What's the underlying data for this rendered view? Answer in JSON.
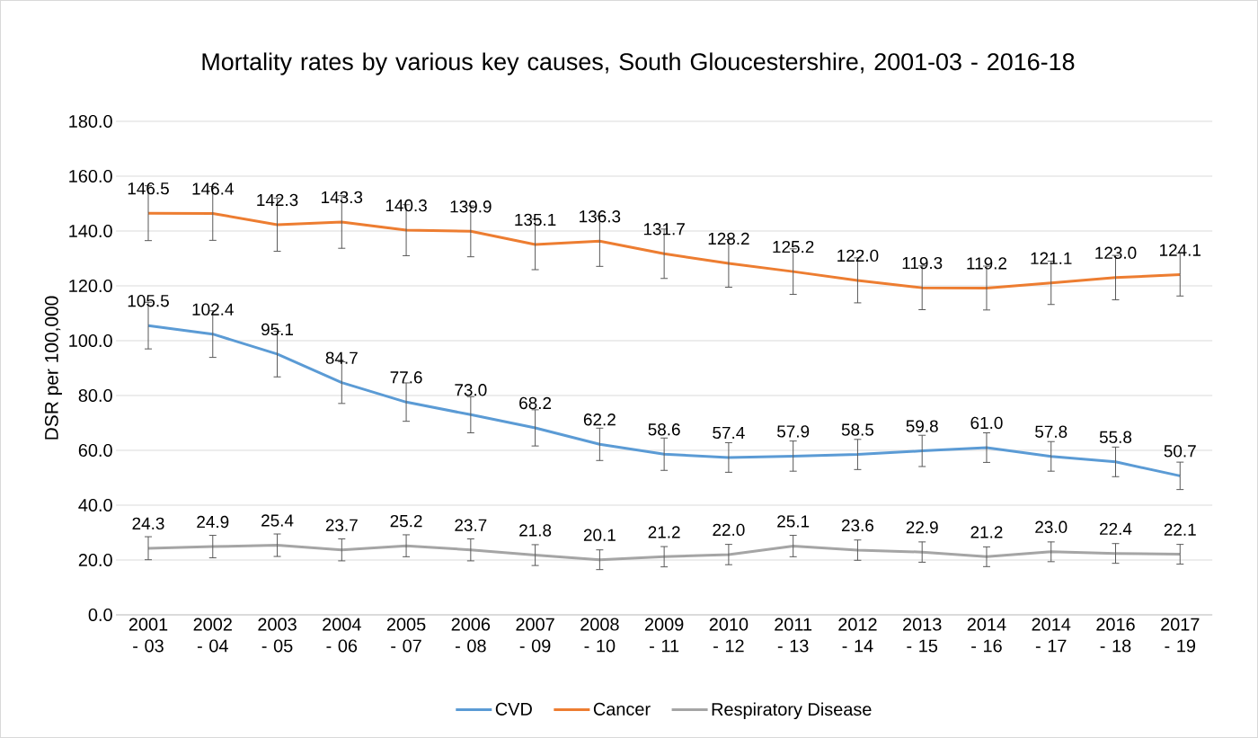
{
  "chart_data": {
    "type": "line",
    "title": "Mortality rates by various key causes, South Gloucestershire, 2001-03 - 2016-18",
    "ylabel": "DSR per 100,000",
    "categories": [
      "2001 - 03",
      "2002 - 04",
      "2003 - 05",
      "2004 - 06",
      "2005 - 07",
      "2006 - 08",
      "2007 - 09",
      "2008 - 10",
      "2009 - 11",
      "2010 - 12",
      "2011 - 13",
      "2012 - 14",
      "2013 - 15",
      "2014 - 16",
      "2014 - 17",
      "2016 - 18",
      "2017 - 19"
    ],
    "series": [
      {
        "name": "CVD",
        "color": "#5b9bd5",
        "values": [
          105.5,
          102.4,
          95.1,
          84.7,
          77.6,
          73.0,
          68.2,
          62.2,
          58.6,
          57.4,
          57.9,
          58.5,
          59.8,
          61.0,
          57.8,
          55.8,
          50.7
        ],
        "errors": [
          8.5,
          8.5,
          8.3,
          7.6,
          7.0,
          6.6,
          6.6,
          5.9,
          5.9,
          5.4,
          5.5,
          5.5,
          5.7,
          5.4,
          5.4,
          5.4,
          5.0
        ],
        "value_labels": [
          "105.5",
          "102.4",
          "95.1",
          "84.7",
          "77.6",
          "73.0",
          "68.2",
          "62.2",
          "58.6",
          "57.4",
          "57.9",
          "58.5",
          "59.8",
          "61.0",
          "57.8",
          "55.8",
          "50.7"
        ]
      },
      {
        "name": "Cancer",
        "color": "#ed7d31",
        "values": [
          146.5,
          146.4,
          142.3,
          143.3,
          140.3,
          139.9,
          135.1,
          136.3,
          131.7,
          128.2,
          125.2,
          122.0,
          119.3,
          119.2,
          121.1,
          123.0,
          124.1
        ],
        "errors": [
          10.0,
          9.8,
          9.7,
          9.6,
          9.3,
          9.3,
          9.2,
          9.2,
          9.0,
          8.7,
          8.3,
          8.2,
          8.0,
          8.0,
          7.9,
          8.1,
          7.8
        ],
        "value_labels": [
          "146.5",
          "146.4",
          "142.3",
          "143.3",
          "140.3",
          "139.9",
          "135.1",
          "136.3",
          "131.7",
          "128.2",
          "125.2",
          "122.0",
          "119.3",
          "119.2",
          "121.1",
          "123.0",
          "124.1"
        ]
      },
      {
        "name": "Respiratory Disease",
        "color": "#a5a5a5",
        "values": [
          24.3,
          24.9,
          25.4,
          23.7,
          25.2,
          23.7,
          21.8,
          20.1,
          21.2,
          22.0,
          25.1,
          23.6,
          22.9,
          21.2,
          23.0,
          22.4,
          22.1
        ],
        "errors": [
          4.2,
          4.1,
          4.1,
          4.0,
          4.0,
          4.0,
          3.8,
          3.6,
          3.7,
          3.7,
          3.9,
          3.7,
          3.7,
          3.6,
          3.6,
          3.6,
          3.6
        ],
        "value_labels": [
          "24.3",
          "24.9",
          "25.4",
          "23.7",
          "25.2",
          "23.7",
          "21.8",
          "20.1",
          "21.2",
          "22.0",
          "25.1",
          "23.6",
          "22.9",
          "21.2",
          "23.0",
          "22.4",
          "22.1"
        ]
      }
    ],
    "ylim": [
      0,
      180
    ],
    "yticks": [
      {
        "value": 0,
        "label": "0.0"
      },
      {
        "value": 20,
        "label": "20.0"
      },
      {
        "value": 40,
        "label": "40.0"
      },
      {
        "value": 60,
        "label": "60.0"
      },
      {
        "value": 80,
        "label": "80.0"
      },
      {
        "value": 100,
        "label": "100.0"
      },
      {
        "value": 120,
        "label": "120.0"
      },
      {
        "value": 140,
        "label": "140.0"
      },
      {
        "value": 160,
        "label": "160.0"
      },
      {
        "value": 180,
        "label": "180.0"
      }
    ],
    "grid": "y",
    "legend": "bottom",
    "marker": "none",
    "line_style": "solid"
  }
}
